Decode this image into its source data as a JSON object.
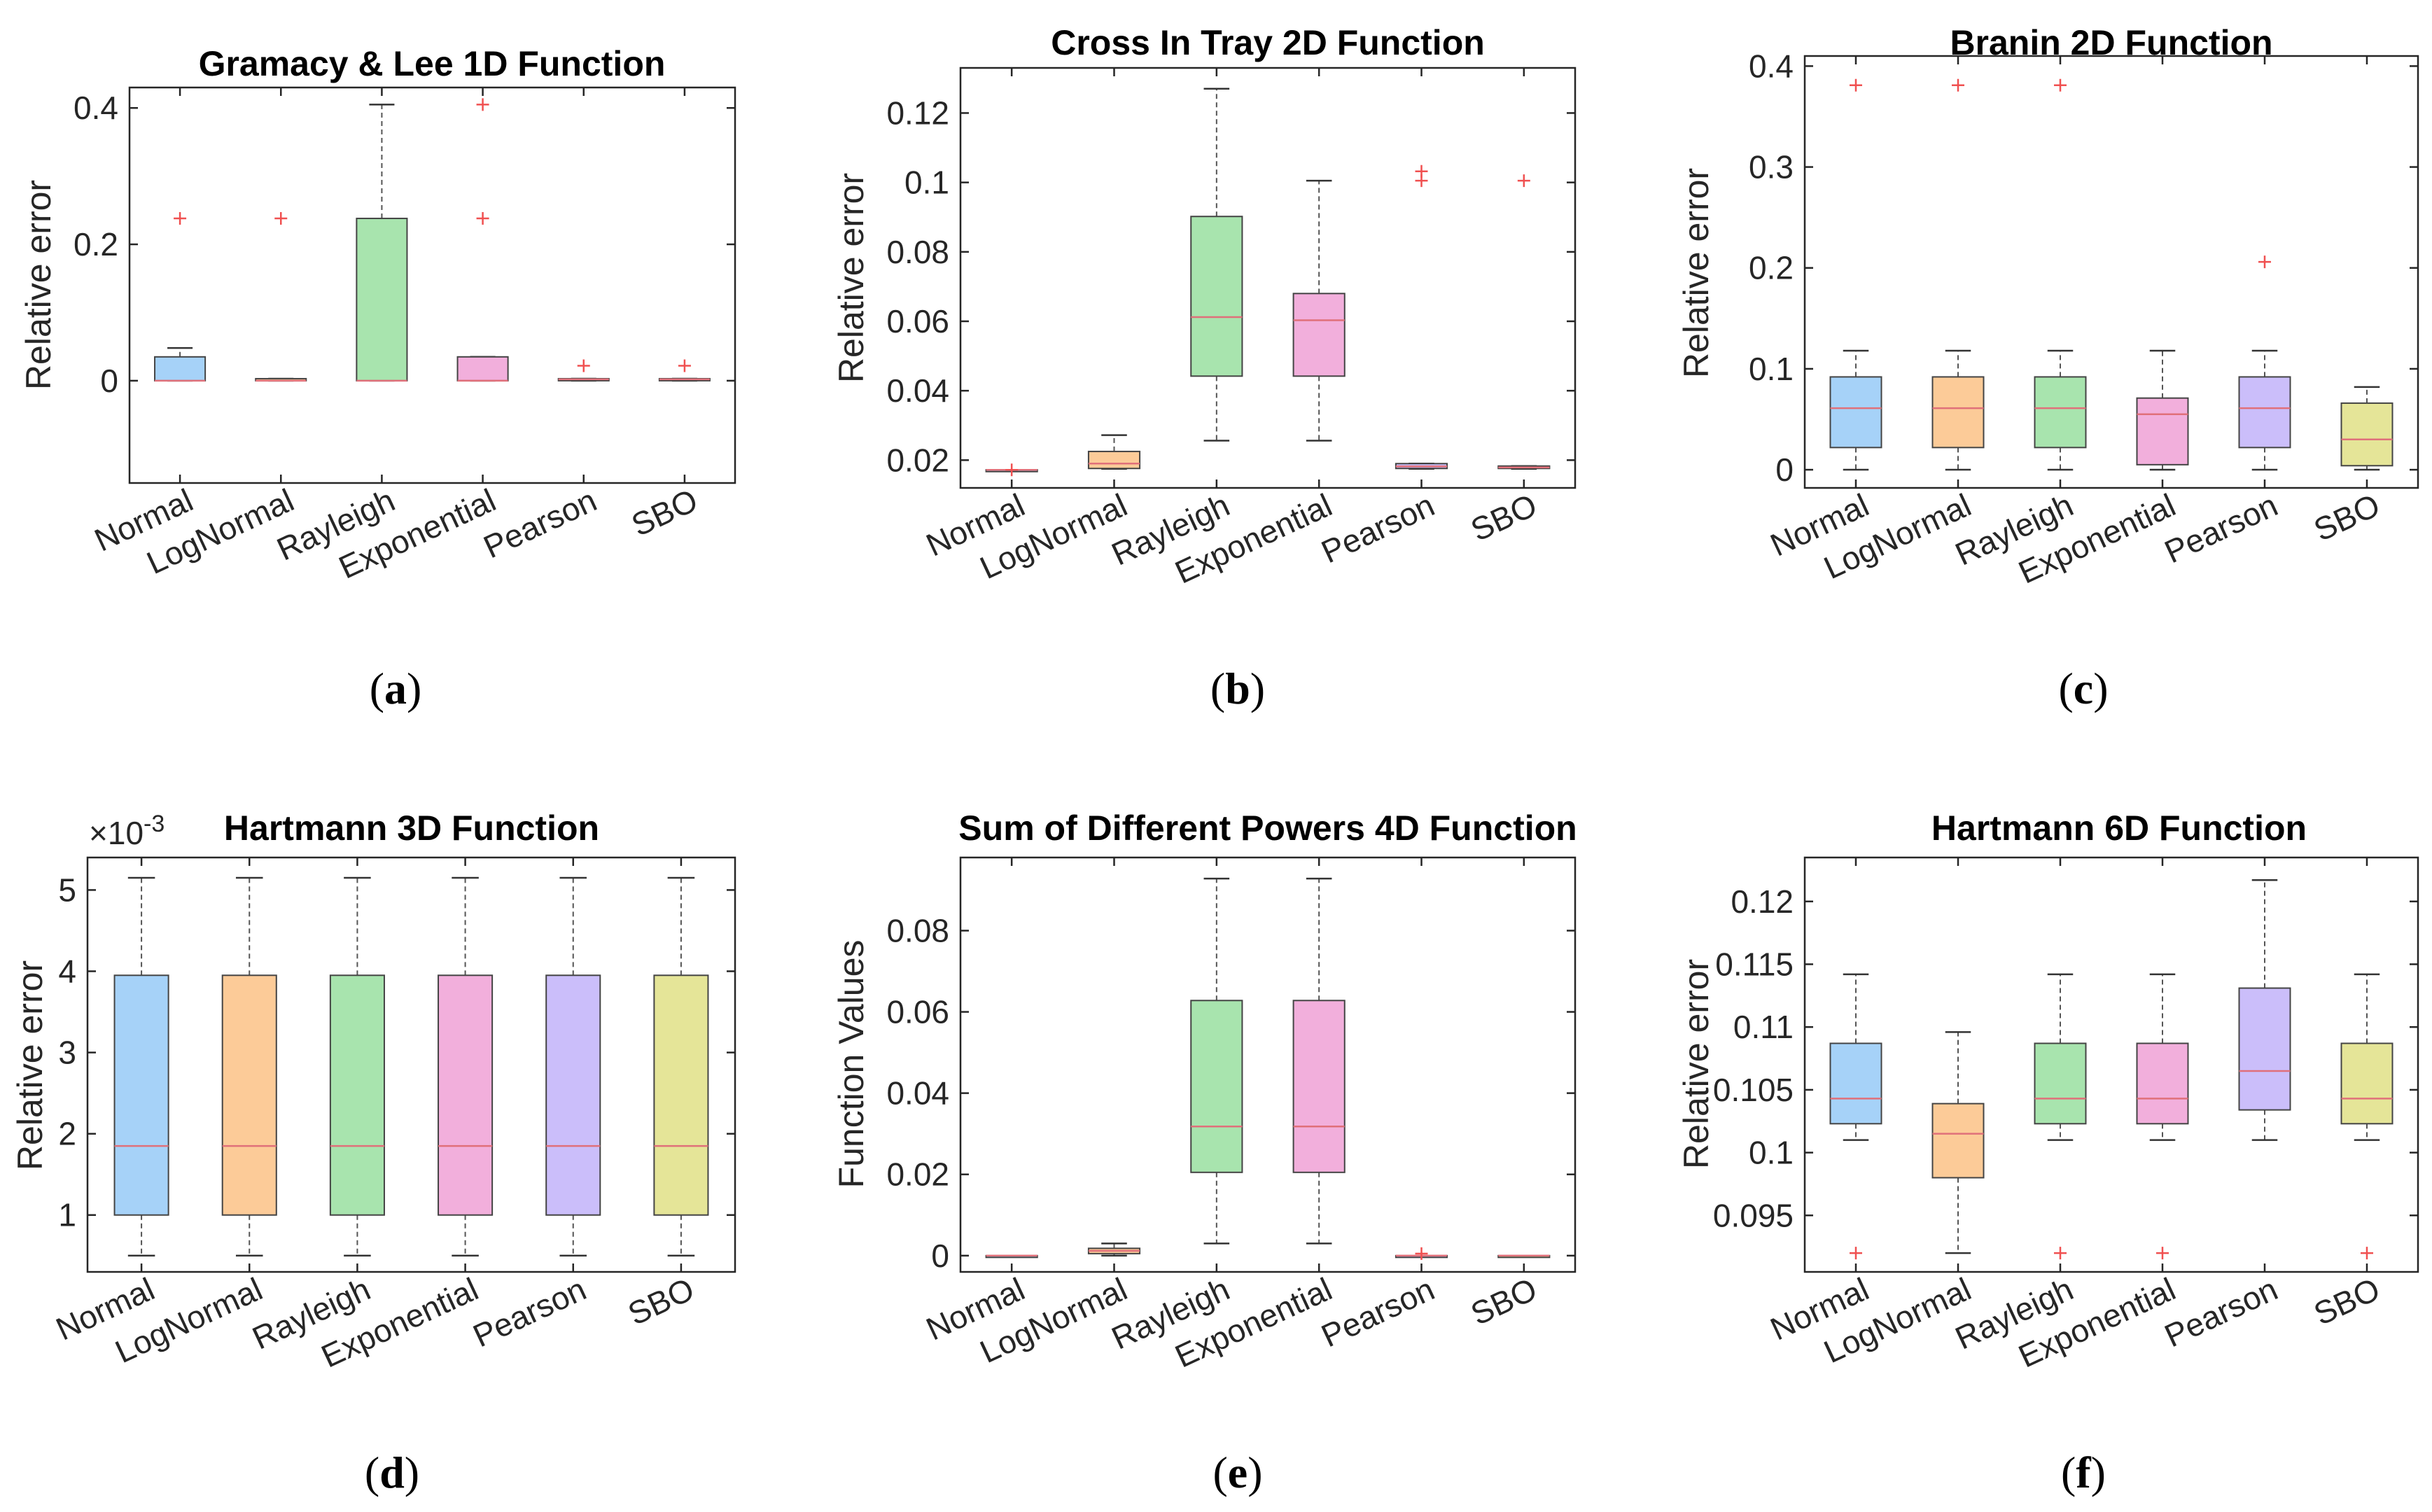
{
  "figure": {
    "categories": [
      "Normal",
      "LogNormal",
      "Rayleigh",
      "Exponential",
      "Pearson",
      "SBO"
    ],
    "colors": [
      "#a6d2f8",
      "#fccb98",
      "#a8e4ae",
      "#f2afdc",
      "#cbbefa",
      "#e5e598"
    ],
    "median_color": "#e0707a",
    "outlier_color": "#f05050"
  },
  "chart_data": [
    {
      "id": "a",
      "type": "box",
      "subcaption": "a",
      "title": "Gramacy & Lee 1D Function",
      "ylabel": "Relative error",
      "ylim": [
        -0.15,
        0.43
      ],
      "yticks": [
        0,
        0.2,
        0.4
      ],
      "ytick_labels": [
        "0",
        "0.2",
        "0.4"
      ],
      "exponent": "",
      "boxes": [
        {
          "whislo": 0.0,
          "q1": 0.0,
          "med": 0.0,
          "q3": 0.035,
          "whishi": 0.048,
          "fliers": [
            0.238
          ]
        },
        {
          "whislo": 0.0,
          "q1": 0.0,
          "med": 0.0,
          "q3": 0.003,
          "whishi": 0.003,
          "fliers": [
            0.238
          ]
        },
        {
          "whislo": 0.0,
          "q1": 0.0,
          "med": 0.0,
          "q3": 0.238,
          "whishi": 0.405,
          "fliers": []
        },
        {
          "whislo": 0.0,
          "q1": 0.0,
          "med": 0.0,
          "q3": 0.035,
          "whishi": 0.035,
          "fliers": [
            0.238,
            0.405
          ]
        },
        {
          "whislo": 0.0,
          "q1": 0.0,
          "med": 0.002,
          "q3": 0.003,
          "whishi": 0.003,
          "fliers": [
            0.022
          ]
        },
        {
          "whislo": 0.0,
          "q1": 0.0,
          "med": 0.002,
          "q3": 0.003,
          "whishi": 0.003,
          "fliers": [
            0.022
          ]
        }
      ]
    },
    {
      "id": "b",
      "type": "box",
      "subcaption": "b",
      "title": "Cross In Tray 2D Function",
      "ylabel": "Relative error",
      "ylim": [
        0.012,
        0.133
      ],
      "yticks": [
        0.02,
        0.04,
        0.06,
        0.08,
        0.1,
        0.12
      ],
      "ytick_labels": [
        "0.02",
        "0.04",
        "0.06",
        "0.08",
        "0.1",
        "0.12"
      ],
      "exponent": "",
      "boxes": [
        {
          "whislo": 0.0172,
          "q1": 0.0172,
          "med": 0.0172,
          "q3": 0.0172,
          "whishi": 0.0172,
          "fliers": [
            0.0172
          ]
        },
        {
          "whislo": 0.0175,
          "q1": 0.0176,
          "med": 0.019,
          "q3": 0.0225,
          "whishi": 0.0272,
          "fliers": []
        },
        {
          "whislo": 0.0256,
          "q1": 0.0442,
          "med": 0.0612,
          "q3": 0.0902,
          "whishi": 0.127,
          "fliers": []
        },
        {
          "whislo": 0.0256,
          "q1": 0.0442,
          "med": 0.0603,
          "q3": 0.068,
          "whishi": 0.1005,
          "fliers": []
        },
        {
          "whislo": 0.0175,
          "q1": 0.0176,
          "med": 0.0182,
          "q3": 0.019,
          "whishi": 0.019,
          "fliers": [
            0.1005,
            0.1032
          ]
        },
        {
          "whislo": 0.0175,
          "q1": 0.0176,
          "med": 0.0179,
          "q3": 0.0183,
          "whishi": 0.0183,
          "fliers": [
            0.1005
          ]
        }
      ]
    },
    {
      "id": "c",
      "type": "box",
      "subcaption": "c",
      "title": "Branin 2D Function",
      "ylabel": "Relative error",
      "ylim": [
        -0.018,
        0.41
      ],
      "yticks": [
        0,
        0.1,
        0.2,
        0.3,
        0.4
      ],
      "ytick_labels": [
        "0",
        "0.1",
        "0.2",
        "0.3",
        "0.4"
      ],
      "exponent": "",
      "boxes": [
        {
          "whislo": 0.0,
          "q1": 0.022,
          "med": 0.061,
          "q3": 0.092,
          "whishi": 0.118,
          "fliers": [
            0.381
          ]
        },
        {
          "whislo": 0.0,
          "q1": 0.022,
          "med": 0.061,
          "q3": 0.092,
          "whishi": 0.118,
          "fliers": [
            0.381
          ]
        },
        {
          "whislo": 0.0,
          "q1": 0.022,
          "med": 0.061,
          "q3": 0.092,
          "whishi": 0.118,
          "fliers": [
            0.381
          ]
        },
        {
          "whislo": 0.0,
          "q1": 0.005,
          "med": 0.055,
          "q3": 0.071,
          "whishi": 0.118,
          "fliers": []
        },
        {
          "whislo": 0.0,
          "q1": 0.022,
          "med": 0.061,
          "q3": 0.092,
          "whishi": 0.118,
          "fliers": [
            0.206
          ]
        },
        {
          "whislo": 0.0,
          "q1": 0.004,
          "med": 0.03,
          "q3": 0.066,
          "whishi": 0.082,
          "fliers": []
        }
      ]
    },
    {
      "id": "d",
      "type": "box",
      "subcaption": "d",
      "title": "Hartmann 3D Function",
      "ylabel": "Relative error",
      "ylim": [
        0.3,
        5.4
      ],
      "yticks": [
        1,
        2,
        3,
        4,
        5
      ],
      "ytick_labels": [
        "1",
        "2",
        "3",
        "4",
        "5"
      ],
      "exponent": "×10",
      "exponent_power": "-3",
      "boxes": [
        {
          "whislo": 0.5,
          "q1": 1.0,
          "med": 1.85,
          "q3": 3.95,
          "whishi": 5.15,
          "fliers": []
        },
        {
          "whislo": 0.5,
          "q1": 1.0,
          "med": 1.85,
          "q3": 3.95,
          "whishi": 5.15,
          "fliers": []
        },
        {
          "whislo": 0.5,
          "q1": 1.0,
          "med": 1.85,
          "q3": 3.95,
          "whishi": 5.15,
          "fliers": []
        },
        {
          "whislo": 0.5,
          "q1": 1.0,
          "med": 1.85,
          "q3": 3.95,
          "whishi": 5.15,
          "fliers": []
        },
        {
          "whislo": 0.5,
          "q1": 1.0,
          "med": 1.85,
          "q3": 3.95,
          "whishi": 5.15,
          "fliers": []
        },
        {
          "whislo": 0.5,
          "q1": 1.0,
          "med": 1.85,
          "q3": 3.95,
          "whishi": 5.15,
          "fliers": []
        }
      ]
    },
    {
      "id": "e",
      "type": "box",
      "subcaption": "e",
      "title": "Sum of Different Powers 4D Function",
      "ylabel": "Function Values",
      "ylim": [
        -0.004,
        0.098
      ],
      "yticks": [
        0,
        0.02,
        0.04,
        0.06,
        0.08
      ],
      "ytick_labels": [
        "0",
        "0.02",
        "0.04",
        "0.06",
        "0.08"
      ],
      "exponent": "",
      "boxes": [
        {
          "whislo": 0.0,
          "q1": 0.0,
          "med": 0.0,
          "q3": 0.0,
          "whishi": 0.0,
          "fliers": []
        },
        {
          "whislo": 0.0,
          "q1": 0.0005,
          "med": 0.0012,
          "q3": 0.0018,
          "whishi": 0.003,
          "fliers": []
        },
        {
          "whislo": 0.003,
          "q1": 0.0205,
          "med": 0.0318,
          "q3": 0.0628,
          "whishi": 0.0928,
          "fliers": []
        },
        {
          "whislo": 0.003,
          "q1": 0.0205,
          "med": 0.0318,
          "q3": 0.0628,
          "whishi": 0.0928,
          "fliers": []
        },
        {
          "whislo": 0.0,
          "q1": 0.0,
          "med": 0.0,
          "q3": 0.0,
          "whishi": 0.0,
          "fliers": [
            0.0005
          ]
        },
        {
          "whislo": 0.0,
          "q1": 0.0,
          "med": 0.0,
          "q3": 0.0,
          "whishi": 0.0,
          "fliers": []
        }
      ]
    },
    {
      "id": "f",
      "type": "box",
      "subcaption": "f",
      "title": "Hartmann 6D Function",
      "ylabel": "Relative error",
      "ylim": [
        0.0905,
        0.1235
      ],
      "yticks": [
        0.095,
        0.1,
        0.105,
        0.11,
        0.115,
        0.12
      ],
      "ytick_labels": [
        "0.095",
        "0.1",
        "0.105",
        "0.11",
        "0.115",
        "0.12"
      ],
      "exponent": "",
      "boxes": [
        {
          "whislo": 0.101,
          "q1": 0.1023,
          "med": 0.1043,
          "q3": 0.1087,
          "whishi": 0.1142,
          "fliers": [
            0.092
          ]
        },
        {
          "whislo": 0.092,
          "q1": 0.098,
          "med": 0.1015,
          "q3": 0.1039,
          "whishi": 0.1096,
          "fliers": []
        },
        {
          "whislo": 0.101,
          "q1": 0.1023,
          "med": 0.1043,
          "q3": 0.1087,
          "whishi": 0.1142,
          "fliers": [
            0.092
          ]
        },
        {
          "whislo": 0.101,
          "q1": 0.1023,
          "med": 0.1043,
          "q3": 0.1087,
          "whishi": 0.1142,
          "fliers": [
            0.092
          ]
        },
        {
          "whislo": 0.101,
          "q1": 0.1034,
          "med": 0.1065,
          "q3": 0.1131,
          "whishi": 0.1217,
          "fliers": []
        },
        {
          "whislo": 0.101,
          "q1": 0.1023,
          "med": 0.1043,
          "q3": 0.1087,
          "whishi": 0.1142,
          "fliers": [
            0.092
          ]
        }
      ]
    }
  ]
}
